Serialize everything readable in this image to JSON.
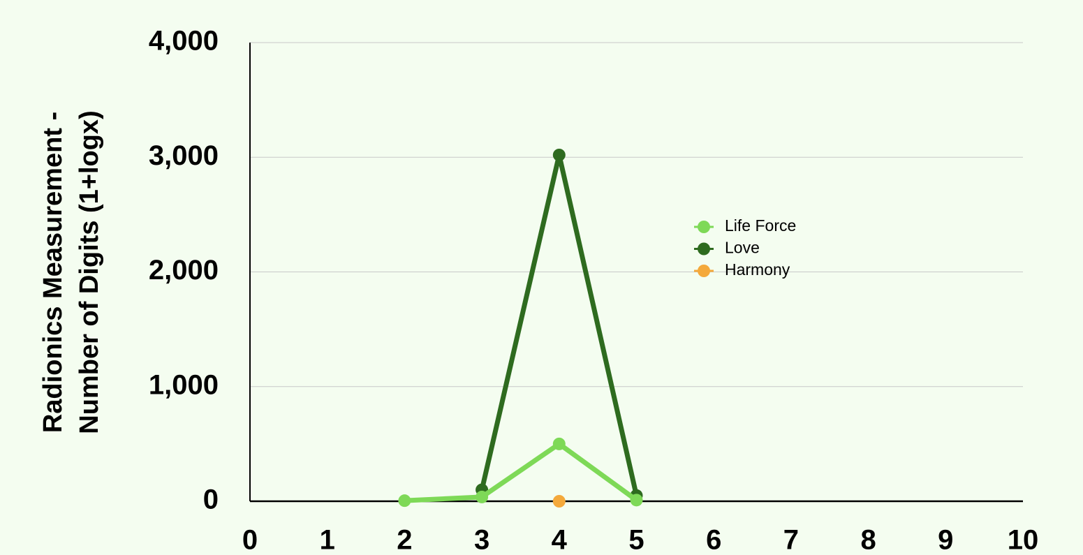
{
  "chart_data": {
    "type": "line",
    "ylabel": [
      "Radionics Measurement -",
      "Number of Digits (1+logx)"
    ],
    "xlim": [
      0,
      10
    ],
    "xticks": [
      0,
      1,
      2,
      3,
      4,
      5,
      6,
      7,
      8,
      9,
      10
    ],
    "ylim": [
      0,
      4000
    ],
    "yticks": [
      0,
      {
        "value": 1000,
        "label": "1,000"
      },
      {
        "value": 2000,
        "label": "2,000"
      },
      {
        "value": 3000,
        "label": "3,000"
      },
      {
        "value": 4000,
        "label": "4,000"
      }
    ],
    "grid": true,
    "legend": "right",
    "series": [
      {
        "name": "Life Force",
        "color": "#7ed957",
        "x": [
          2,
          3,
          4,
          5
        ],
        "values": [
          5,
          37,
          500,
          10
        ]
      },
      {
        "name": "Love",
        "color": "#2e6b1f",
        "x": [
          3,
          4,
          5
        ],
        "values": [
          100,
          3020,
          50
        ]
      },
      {
        "name": "Harmony",
        "color": "#f4a93b",
        "x": [
          4
        ],
        "values": [
          0
        ]
      }
    ]
  }
}
